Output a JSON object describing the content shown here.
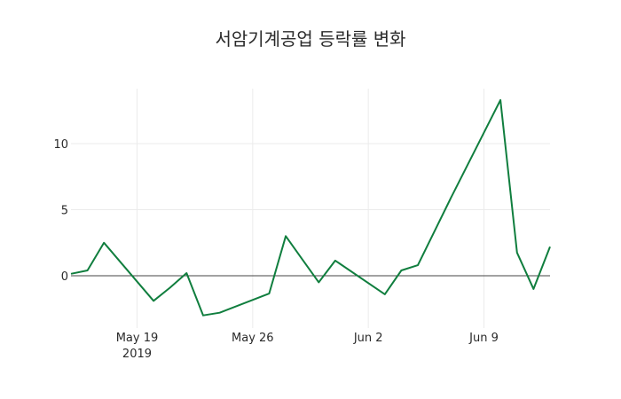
{
  "title": "서암기계공업 등락률 변화",
  "colors": {
    "line": "#107e3e",
    "grid": "#ebebeb",
    "zeroline": "#444444"
  },
  "chart_data": {
    "type": "line",
    "title": "서암기계공업 등락률 변화",
    "xlabel": "",
    "ylabel": "",
    "x": [
      "2019-05-15",
      "2019-05-16",
      "2019-05-17",
      "2019-05-20",
      "2019-05-21",
      "2019-05-22",
      "2019-05-23",
      "2019-05-24",
      "2019-05-27",
      "2019-05-28",
      "2019-05-29",
      "2019-05-30",
      "2019-05-31",
      "2019-06-03",
      "2019-06-04",
      "2019-06-05",
      "2019-06-07",
      "2019-06-10",
      "2019-06-11",
      "2019-06-12",
      "2019-06-13"
    ],
    "series": [
      {
        "name": "등락률",
        "values": [
          0.15,
          0.4,
          2.5,
          -1.9,
          -0.9,
          0.2,
          -3.0,
          -2.8,
          -1.35,
          3.0,
          1.25,
          -0.5,
          1.15,
          -1.4,
          0.4,
          0.8,
          5.9,
          13.3,
          1.75,
          -1.0,
          2.2
        ]
      }
    ],
    "x_ticks": [
      {
        "date": "2019-05-19",
        "label": "May 19",
        "sublabel": "2019"
      },
      {
        "date": "2019-05-26",
        "label": "May 26",
        "sublabel": ""
      },
      {
        "date": "2019-06-02",
        "label": "Jun 2",
        "sublabel": ""
      },
      {
        "date": "2019-06-09",
        "label": "Jun 9",
        "sublabel": ""
      }
    ],
    "y_ticks": [
      0,
      5,
      10
    ],
    "y_tick_labels": [
      "0",
      "5",
      "10"
    ],
    "ylim": [
      -4.1,
      14.1
    ],
    "xlim": [
      "2019-05-15",
      "2019-06-13"
    ],
    "grid": true,
    "legend": false
  }
}
